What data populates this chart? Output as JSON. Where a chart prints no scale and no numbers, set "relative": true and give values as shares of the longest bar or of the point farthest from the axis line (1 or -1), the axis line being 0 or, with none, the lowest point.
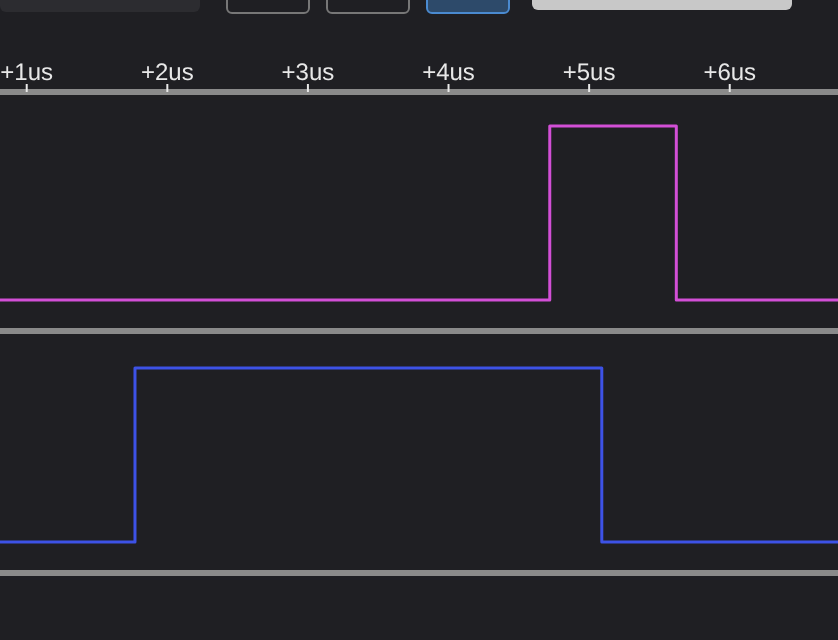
{
  "chart_data": [
    {
      "type": "step",
      "relative": true,
      "xlim": [
        0.81,
        6.77
      ],
      "xticks": [
        {
          "value": 1,
          "label": "+1us"
        },
        {
          "value": 2,
          "label": "+2us"
        },
        {
          "value": 3,
          "label": "+3us"
        },
        {
          "value": 4,
          "label": "+4us"
        },
        {
          "value": 5,
          "label": "+5us"
        },
        {
          "value": 6,
          "label": "+6us"
        }
      ],
      "tick_labels": "x",
      "series": [
        {
          "color": "#d24fd6",
          "x": [
            0.81,
            4.72,
            5.62,
            6.77
          ],
          "values": [
            0,
            1,
            0,
            0
          ]
        }
      ]
    },
    {
      "type": "step",
      "relative": true,
      "xlim": [
        0.81,
        6.77
      ],
      "tick_labels": false,
      "series": [
        {
          "color": "#3d52e6",
          "x": [
            0.81,
            1.77,
            5.09,
            6.77
          ],
          "values": [
            0,
            1,
            0,
            0
          ]
        }
      ]
    }
  ]
}
